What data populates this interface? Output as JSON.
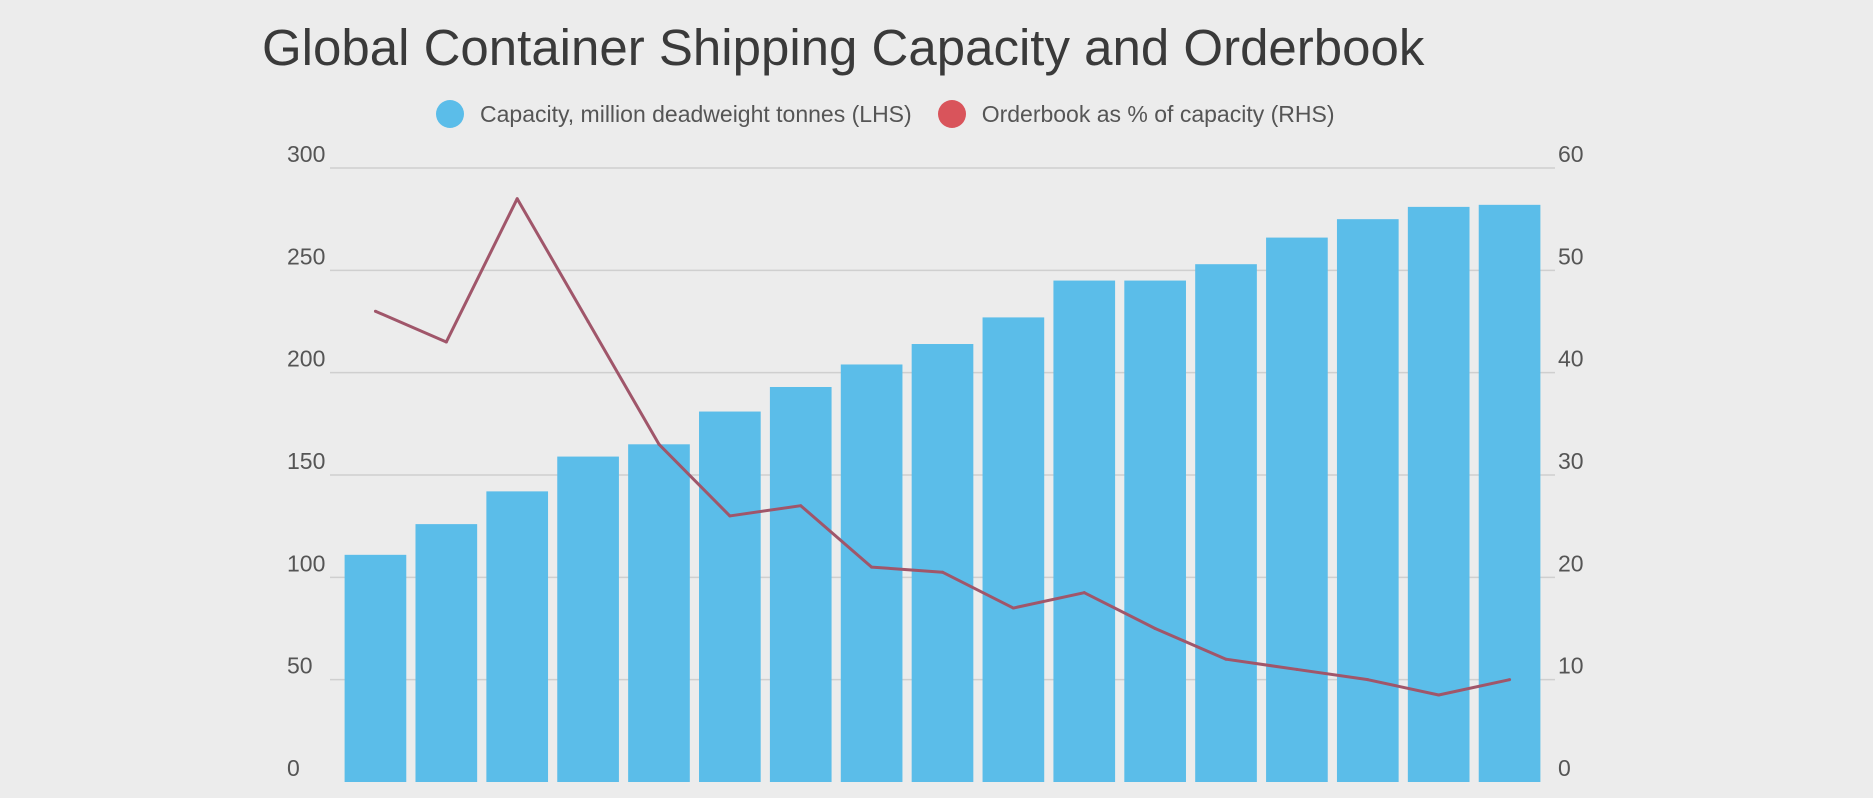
{
  "chart_data": {
    "type": "bar",
    "title": "Global Container Shipping Capacity and Orderbook",
    "legend_position": "top",
    "grid": true,
    "x": [
      "",
      "",
      "",
      "",
      "",
      "",
      "",
      "",
      "",
      "",
      "",
      "",
      "",
      "",
      "",
      "",
      ""
    ],
    "series": [
      {
        "name": "Capacity, million deadweight tonnes (LHS)",
        "type": "bar",
        "axis": "left",
        "color": "#5bbde9",
        "values": [
          111,
          126,
          142,
          159,
          165,
          181,
          193,
          204,
          214,
          227,
          245,
          245,
          253,
          266,
          275,
          281,
          282
        ]
      },
      {
        "name": "Orderbook as % of capacity (RHS)",
        "type": "line",
        "axis": "right",
        "color": "#a0566a",
        "legend_color": "#d9545b",
        "values": [
          46,
          43,
          57,
          45,
          33,
          26,
          27,
          21,
          20.5,
          17,
          18.5,
          15,
          12,
          11,
          10,
          8.5,
          10
        ]
      }
    ],
    "y_left": {
      "min": 0,
      "max": 300,
      "ticks": [
        0,
        50,
        100,
        150,
        200,
        250,
        300
      ]
    },
    "y_right": {
      "min": 0,
      "max": 60,
      "ticks": [
        0,
        10,
        20,
        30,
        40,
        50,
        60
      ]
    }
  }
}
